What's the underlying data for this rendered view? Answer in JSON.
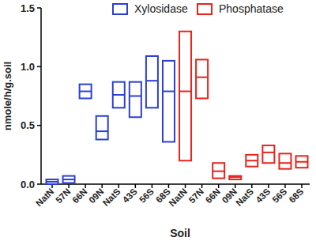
{
  "chart_data": {
    "type": "box",
    "x_label": "Soil",
    "y_label": "nmole/h/g.soil",
    "categories": [
      "NatN",
      "57N",
      "66N",
      "09N",
      "NatS",
      "43S",
      "56S",
      "68S",
      "NatN",
      "57N",
      "66N",
      "09N",
      "NatS",
      "43S",
      "56S",
      "68S"
    ],
    "series": [
      {
        "name": "Xylosidase",
        "color": "#2b3fd6",
        "values": [
          0.02,
          0.04,
          0.79,
          0.45,
          0.76,
          0.75,
          0.88,
          0.79,
          null,
          null,
          null,
          null,
          null,
          null,
          null,
          null
        ],
        "min": [
          0.0,
          0.01,
          0.73,
          0.38,
          0.65,
          0.57,
          0.65,
          0.36,
          null,
          null,
          null,
          null,
          null,
          null,
          null,
          null
        ],
        "max": [
          0.04,
          0.07,
          0.85,
          0.58,
          0.87,
          0.87,
          1.09,
          1.05,
          null,
          null,
          null,
          null,
          null,
          null,
          null,
          null
        ]
      },
      {
        "name": "Phosphatase",
        "color": "#e8231c",
        "values": [
          null,
          null,
          null,
          null,
          null,
          null,
          null,
          null,
          0.79,
          0.91,
          0.11,
          0.06,
          0.2,
          0.27,
          0.18,
          0.19
        ],
        "min": [
          null,
          null,
          null,
          null,
          null,
          null,
          null,
          null,
          0.2,
          0.73,
          0.05,
          0.04,
          0.15,
          0.18,
          0.13,
          0.14
        ],
        "max": [
          null,
          null,
          null,
          null,
          null,
          null,
          null,
          null,
          1.3,
          1.06,
          0.18,
          0.07,
          0.25,
          0.33,
          0.26,
          0.24
        ]
      }
    ],
    "ylim": [
      0,
      1.5
    ],
    "yticks": [
      {
        "value": 0,
        "label": "0.0"
      },
      {
        "value": 0.5,
        "label": "0.5"
      },
      {
        "value": 1,
        "label": "1.0"
      },
      {
        "value": 1.5,
        "label": "1.5"
      }
    ],
    "legend": "top",
    "grid": false
  }
}
